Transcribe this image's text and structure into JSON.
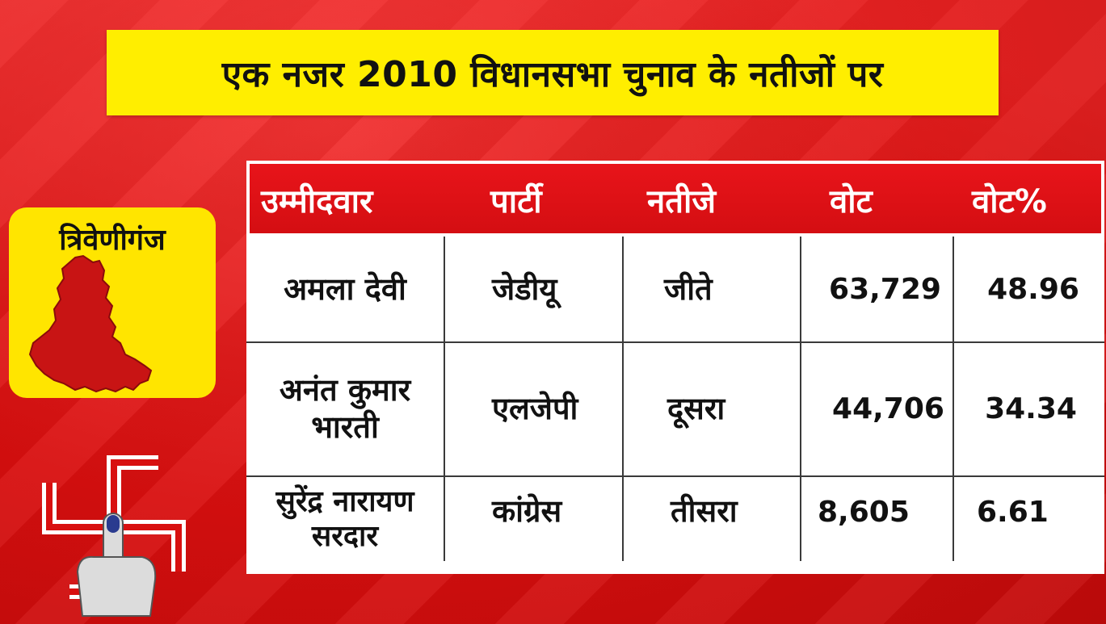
{
  "title": "एक नजर 2010 विधानसभा चुनाव के नतीजों पर",
  "region": {
    "name": "त्रिवेणीगंज",
    "map_icon": "region-map-icon"
  },
  "symbol_icon": "voting-symbol-icon",
  "colors": {
    "background": "#e01414",
    "banner": "#ffee00",
    "header": "#d40e12",
    "map": "#c81414"
  },
  "table": {
    "headers": [
      "उम्मीदवार",
      "पार्टी",
      "नतीजे",
      "वोट",
      "वोट%"
    ],
    "rows": [
      {
        "candidate": "अमला देवी",
        "party": "जेडीयू",
        "result": "जीते",
        "votes": "63,729",
        "vote_pct": "48.96"
      },
      {
        "candidate_line1": "अनंत कुमार",
        "candidate_line2": "भारती",
        "party": "एलजेपी",
        "result": "दूसरा",
        "votes": "44,706",
        "vote_pct": "34.34"
      },
      {
        "candidate_line1": "सुरेंद्र नारायण",
        "candidate_line2": "सरदार",
        "party": "कांग्रेस",
        "result": "तीसरा",
        "votes": "8,605",
        "vote_pct": "6.61"
      }
    ]
  }
}
